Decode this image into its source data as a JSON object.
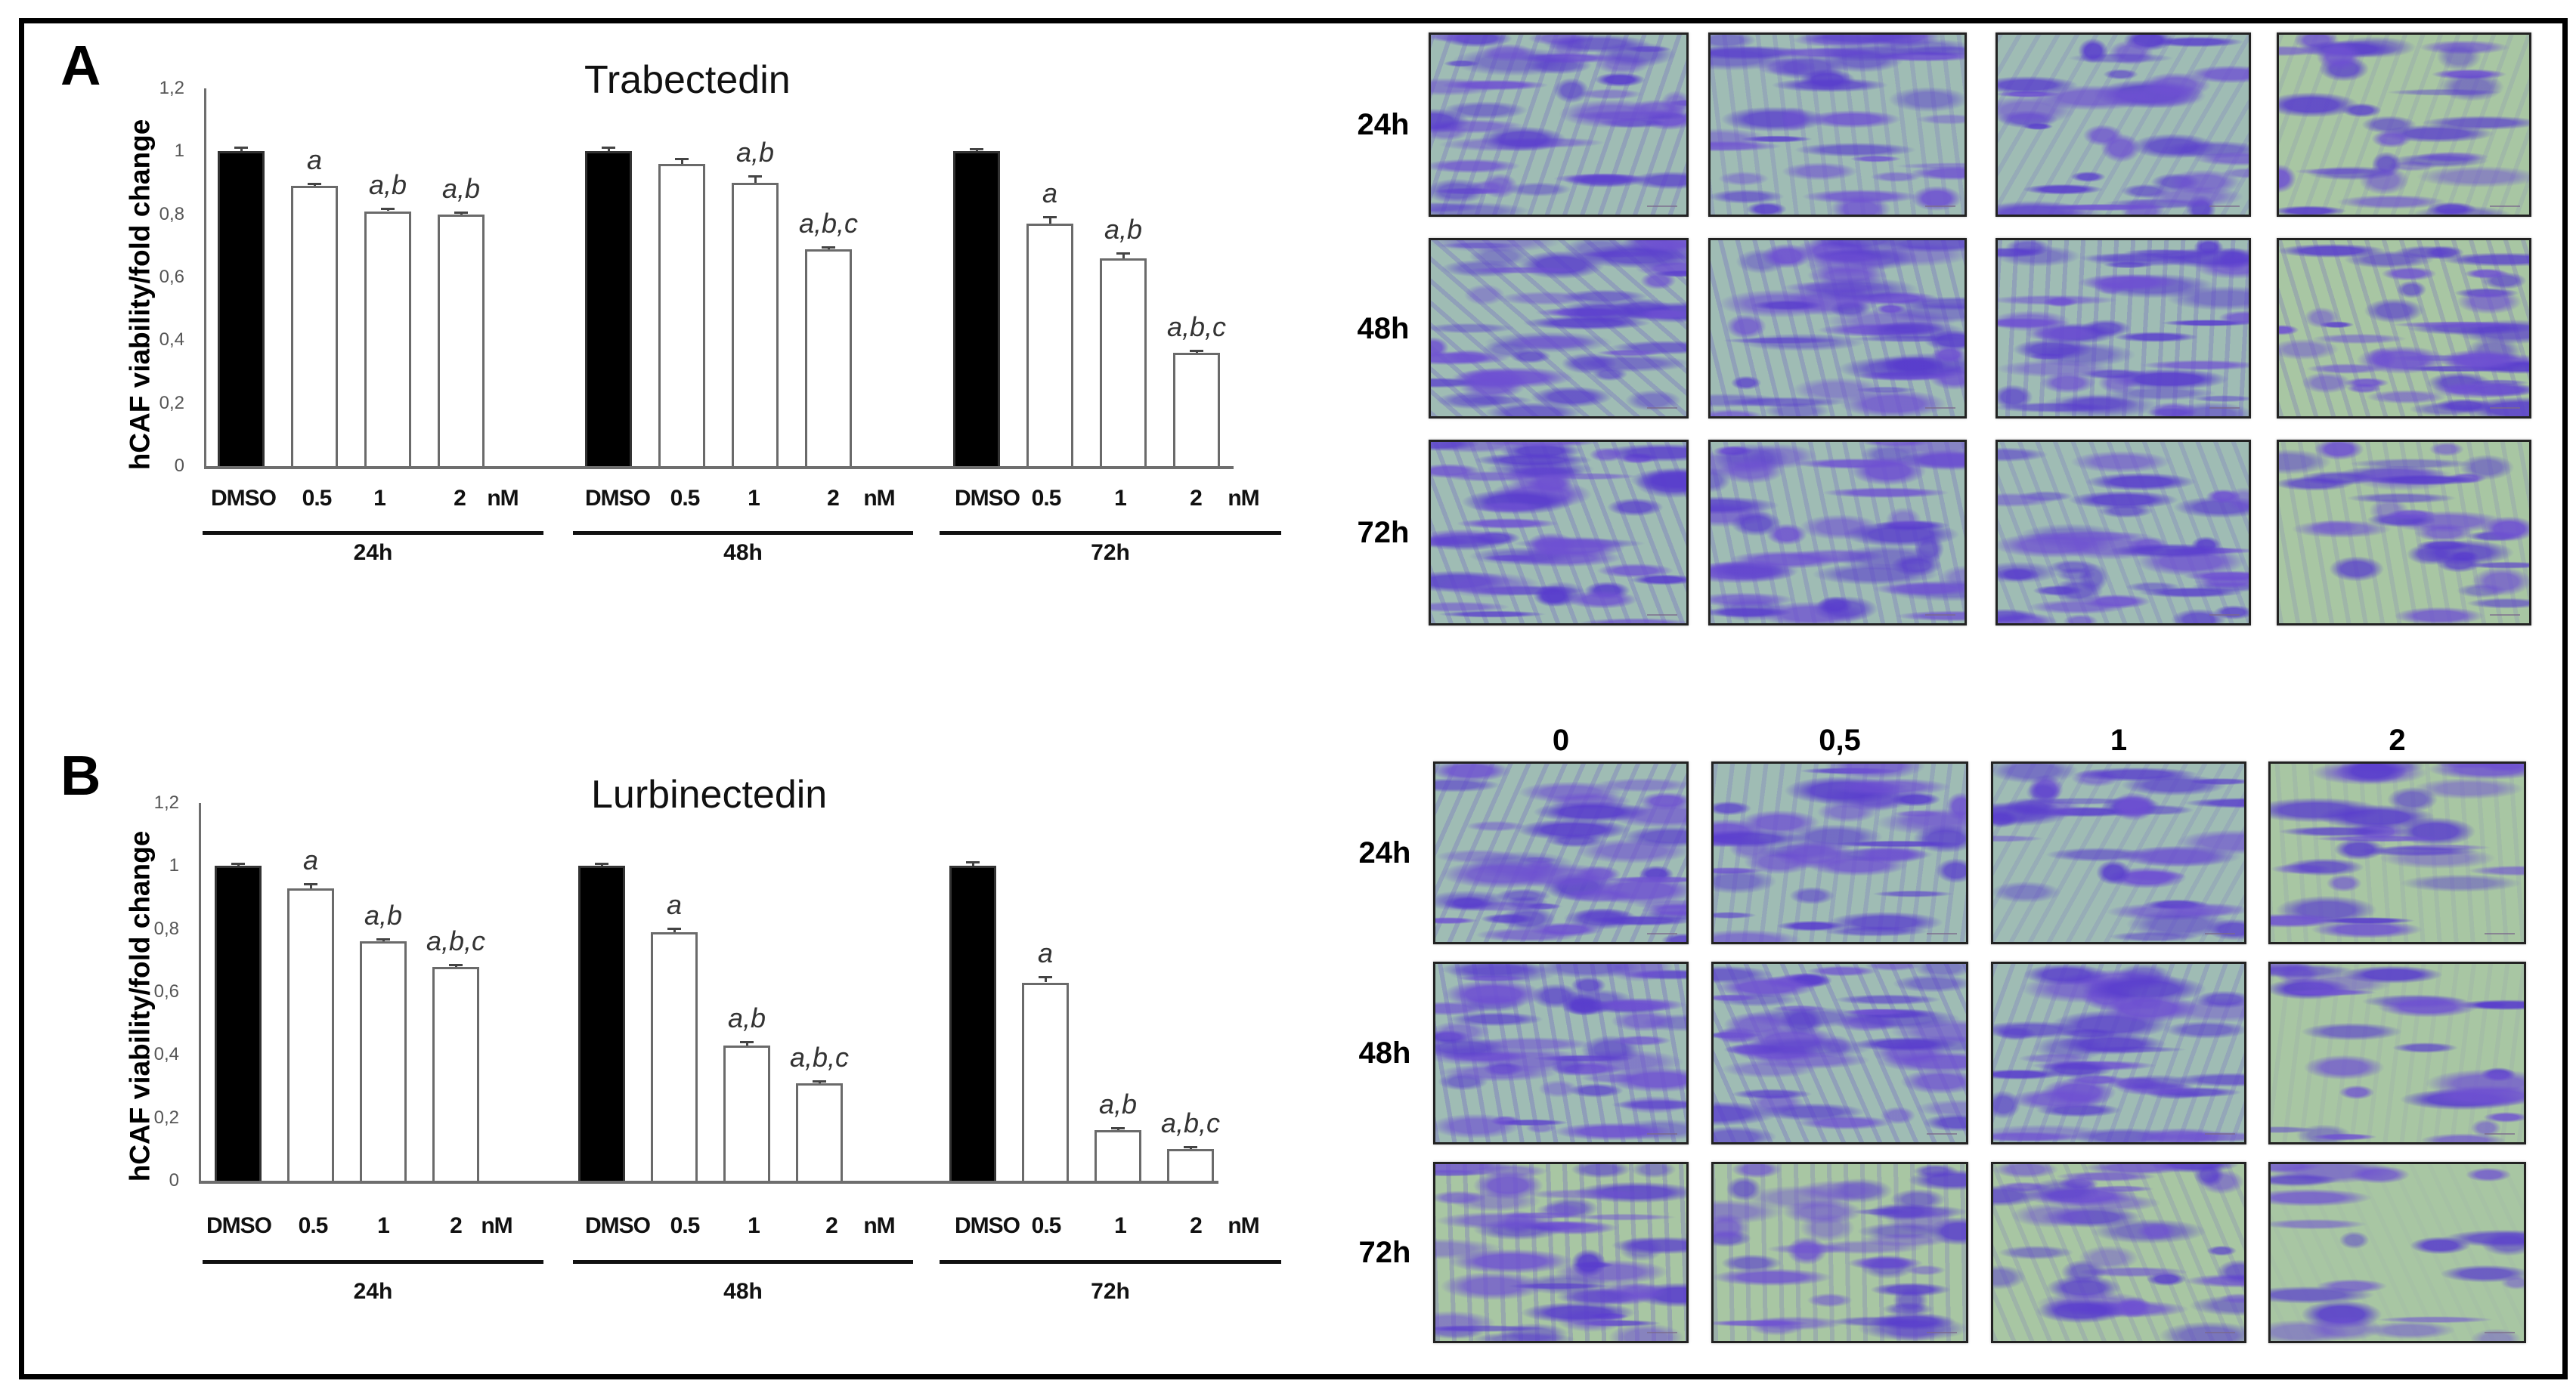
{
  "figure": {
    "panels": [
      {
        "letter": "A",
        "drug": "Trabectedin",
        "y_axis_label": "hCAF viability/fold change",
        "y_ticks": [
          "0",
          "0,2",
          "0,4",
          "0,6",
          "0,8",
          "1",
          "1,2"
        ],
        "x_category_labels": [
          "DMSO",
          "0.5",
          "1",
          "2"
        ],
        "unit_label": "nM",
        "time_groups": [
          "24h",
          "48h",
          "72h"
        ],
        "micrograph_grid": {
          "row_labels": [
            "24h",
            "48h",
            "72h"
          ],
          "column_labels": []
        }
      },
      {
        "letter": "B",
        "drug": "Lurbinectedin",
        "y_axis_label": "hCAF viability/fold change",
        "y_ticks": [
          "0",
          "0,2",
          "0,4",
          "0,6",
          "0,8",
          "1",
          "1,2"
        ],
        "x_category_labels": [
          "DMSO",
          "0.5",
          "1",
          "2"
        ],
        "unit_label": "nM",
        "time_groups": [
          "24h",
          "48h",
          "72h"
        ],
        "micrograph_grid": {
          "row_labels": [
            "24h",
            "48h",
            "72h"
          ],
          "column_labels": [
            "0",
            "0,5",
            "1",
            "2"
          ]
        }
      }
    ],
    "colors": {
      "control_bar": "#000000",
      "treated_bar": "#ffffff",
      "bar_outline": "#6a6a6a",
      "stain_purple": "#5a3fd0",
      "background_green": "#a9c6a8"
    }
  },
  "chart_data": [
    {
      "type": "bar",
      "title": "Trabectedin",
      "panel": "A",
      "xlabel": "",
      "ylabel": "hCAF viability/fold change",
      "ylim": [
        0,
        1.2
      ],
      "yticks": [
        0,
        0.2,
        0.4,
        0.6,
        0.8,
        1.0,
        1.2
      ],
      "grid": false,
      "legend": null,
      "categories": [
        "DMSO",
        "0.5",
        "1",
        "2"
      ],
      "category_unit": "nM",
      "groups": [
        "24h",
        "48h",
        "72h"
      ],
      "series": [
        {
          "name": "24h",
          "values": [
            1.0,
            0.89,
            0.81,
            0.8
          ],
          "errors": [
            0.015,
            0.01,
            0.01,
            0.01
          ],
          "annotations": [
            "",
            "a",
            "a,b",
            "a,b"
          ]
        },
        {
          "name": "48h",
          "values": [
            1.0,
            0.96,
            0.9,
            0.69
          ],
          "errors": [
            0.015,
            0.02,
            0.025,
            0.008
          ],
          "annotations": [
            "",
            "",
            "a,b",
            "a,b,c"
          ]
        },
        {
          "name": "72h",
          "values": [
            1.0,
            0.77,
            0.66,
            0.36
          ],
          "errors": [
            0.005,
            0.025,
            0.02,
            0.005
          ],
          "annotations": [
            "",
            "a",
            "a,b",
            "a,b,c"
          ]
        }
      ]
    },
    {
      "type": "bar",
      "title": "Lurbinectedin",
      "panel": "B",
      "xlabel": "",
      "ylabel": "hCAF viability/fold change",
      "ylim": [
        0,
        1.2
      ],
      "yticks": [
        0,
        0.2,
        0.4,
        0.6,
        0.8,
        1.0,
        1.2
      ],
      "grid": false,
      "legend": null,
      "categories": [
        "DMSO",
        "0.5",
        "1",
        "2"
      ],
      "category_unit": "nM",
      "groups": [
        "24h",
        "48h",
        "72h"
      ],
      "series": [
        {
          "name": "24h",
          "values": [
            1.0,
            0.93,
            0.76,
            0.68
          ],
          "errors": [
            0.01,
            0.015,
            0.01,
            0.005
          ],
          "annotations": [
            "",
            "a",
            "a,b",
            "a,b,c"
          ]
        },
        {
          "name": "48h",
          "values": [
            1.0,
            0.79,
            0.43,
            0.31
          ],
          "errors": [
            0.01,
            0.015,
            0.015,
            0.005
          ],
          "annotations": [
            "",
            "a",
            "a,b",
            "a,b,c"
          ]
        },
        {
          "name": "72h",
          "values": [
            1.0,
            0.63,
            0.16,
            0.1
          ],
          "errors": [
            0.015,
            0.02,
            0.005,
            0.005
          ],
          "annotations": [
            "",
            "a",
            "a,b",
            "a,b,c"
          ]
        }
      ]
    }
  ]
}
